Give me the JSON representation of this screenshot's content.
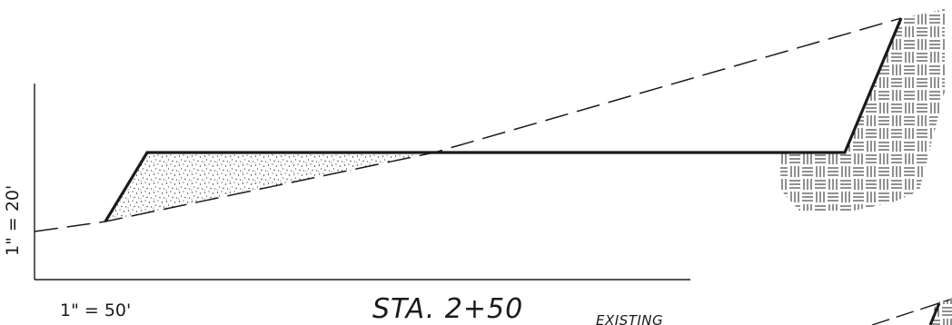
{
  "vertical_scale": "1\" = 20'",
  "horizontal_scale": "1\" = 50'",
  "station_label": "STA. 2+50",
  "existing_label": "EXISTING",
  "legend": {
    "fill_pattern": "stipple",
    "cut_pattern": "crosshatch"
  },
  "colors": {
    "line": "#1a1a1a",
    "background": "#ffffff"
  }
}
